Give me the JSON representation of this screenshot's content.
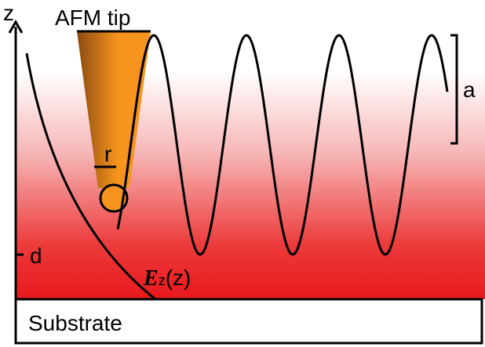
{
  "axis_label": "z",
  "tip_label": "AFM tip",
  "amplitude_label": "a",
  "radius_label": "r",
  "distance_label": "d",
  "field_label": {
    "symbol": "E",
    "subscript": "z",
    "argument": "(z)"
  },
  "substrate_label": "Substrate"
}
